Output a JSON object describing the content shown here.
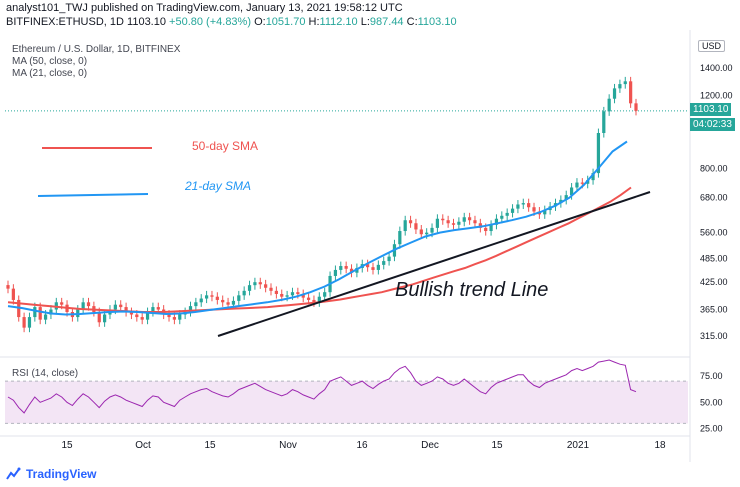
{
  "header": {
    "author_line": "analyst101_TWJ published on TradingView.com, January 13, 2021 19:58:12 UTC",
    "symbol_prefix": "BITFINEX:ETHUSD, 1D",
    "last": "1103.10",
    "change": "+50.80 (+4.83%)",
    "open_label": "O:",
    "open": "1051.70",
    "high_label": "H:",
    "high": "1112.10",
    "low_label": "L:",
    "low": "987.44",
    "close_label": "C:",
    "close": "1103.10"
  },
  "legend": {
    "title": "Ethereum / U.S. Dollar, 1D, BITFINEX",
    "ma50": "MA (50, close, 0)",
    "ma21": "MA (21, close, 0)",
    "rsi": "RSI (14, close)"
  },
  "annotations": {
    "sma50": "50-day SMA",
    "sma21": "21-day SMA",
    "trend": "Bullish trend Line"
  },
  "price_axis": {
    "currency_button": "USD",
    "current_price": "1103.10",
    "countdown": "04:02:33",
    "ticks": [
      "1400.00",
      "1200.00",
      "800.00",
      "680.00",
      "560.00",
      "485.00",
      "425.00",
      "365.00",
      "315.00"
    ]
  },
  "rsi_axis": {
    "ticks": [
      "75.00",
      "50.00",
      "25.00"
    ]
  },
  "time_axis": {
    "ticks": [
      "15",
      "Oct",
      "15",
      "Nov",
      "16",
      "Dec",
      "15",
      "2021",
      "18"
    ]
  },
  "footer": {
    "brand": "TradingView"
  },
  "colors": {
    "up": "#26a69a",
    "down": "#ef5350",
    "ma50": "#ef5350",
    "ma21": "#2196f3",
    "trend": "#131722",
    "rsi_line": "#9c27b0",
    "rsi_band": "#f3e5f5",
    "price_tag": "#26a69a"
  },
  "chart_data": {
    "type": "candlestick",
    "symbol": "BITFINEX:ETHUSD",
    "timeframe": "1D",
    "y_scale": "log",
    "price_range": [
      280,
      1700
    ],
    "rsi_range": [
      20,
      90
    ],
    "candles_approx_close": [
      410,
      385,
      350,
      330,
      350,
      370,
      345,
      355,
      365,
      380,
      375,
      360,
      350,
      365,
      380,
      372,
      360,
      340,
      355,
      365,
      375,
      370,
      360,
      355,
      350,
      345,
      360,
      370,
      365,
      355,
      350,
      345,
      355,
      360,
      372,
      380,
      388,
      395,
      392,
      385,
      380,
      375,
      383,
      395,
      405,
      418,
      425,
      420,
      412,
      405,
      398,
      392,
      395,
      402,
      398,
      390,
      385,
      380,
      392,
      402,
      440,
      455,
      465,
      458,
      448,
      460,
      470,
      462,
      455,
      468,
      478,
      490,
      525,
      565,
      600,
      590,
      570,
      555,
      560,
      575,
      605,
      600,
      590,
      585,
      595,
      610,
      600,
      590,
      575,
      565,
      585,
      605,
      615,
      625,
      640,
      655,
      660,
      645,
      630,
      620,
      635,
      648,
      660,
      672,
      690,
      720,
      740,
      735,
      750,
      780,
      975,
      1100,
      1180,
      1250,
      1280,
      1300,
      1150,
      1103
    ],
    "ma50_approx": [
      380,
      378,
      376,
      374,
      372,
      370,
      368,
      366,
      365,
      364,
      363,
      362,
      361,
      360,
      360,
      360,
      361,
      362,
      363,
      364,
      365,
      366,
      367,
      368,
      369,
      370,
      372,
      374,
      376,
      378,
      380,
      383,
      386,
      390,
      394,
      398,
      402,
      408,
      414,
      420,
      428,
      436,
      444,
      452,
      460,
      470,
      480,
      492,
      505,
      518,
      532,
      546,
      560,
      575,
      590,
      608,
      626,
      645,
      665,
      690,
      720
    ],
    "ma21_approx": [
      372,
      368,
      362,
      357,
      355,
      356,
      358,
      360,
      361,
      360,
      358,
      356,
      357,
      360,
      364,
      368,
      372,
      376,
      380,
      385,
      392,
      402,
      415,
      432,
      452,
      472,
      492,
      512,
      530,
      548,
      560,
      568,
      574,
      580,
      590,
      600,
      612,
      628,
      650,
      680,
      730,
      800,
      880,
      930
    ],
    "rsi_approx": [
      55,
      52,
      45,
      40,
      48,
      55,
      50,
      52,
      54,
      58,
      55,
      50,
      47,
      53,
      58,
      55,
      50,
      45,
      51,
      55,
      57,
      55,
      52,
      50,
      48,
      46,
      52,
      56,
      55,
      50,
      48,
      46,
      52,
      55,
      58,
      60,
      62,
      63,
      60,
      58,
      56,
      55,
      58,
      62,
      64,
      66,
      68,
      65,
      62,
      60,
      58,
      56,
      58,
      62,
      60,
      57,
      55,
      53,
      58,
      62,
      70,
      72,
      74,
      70,
      66,
      68,
      70,
      66,
      63,
      67,
      70,
      72,
      78,
      82,
      84,
      78,
      70,
      66,
      68,
      70,
      74,
      72,
      68,
      66,
      68,
      72,
      68,
      64,
      60,
      58,
      64,
      68,
      70,
      72,
      74,
      76,
      76,
      70,
      66,
      64,
      68,
      70,
      72,
      74,
      76,
      80,
      82,
      80,
      82,
      84,
      88,
      89,
      90,
      88,
      86,
      85,
      62,
      60
    ],
    "trend_line": {
      "from": [
        "Oct 15",
        315
      ],
      "to": [
        "Jan 13",
        690
      ]
    }
  }
}
